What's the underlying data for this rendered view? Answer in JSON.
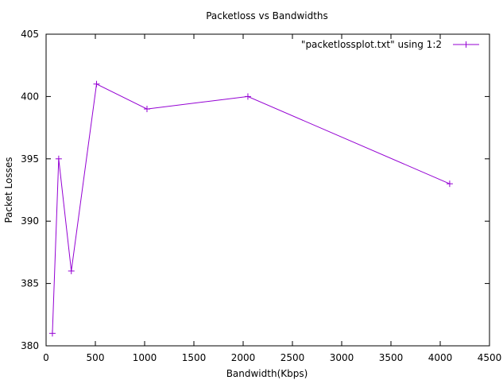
{
  "chart_data": {
    "type": "line",
    "title": "Packetloss vs Bandwidths",
    "xlabel": "Bandwidth(Kbps)",
    "ylabel": "Packet Losses",
    "xlim": [
      0,
      4500
    ],
    "ylim": [
      380,
      405
    ],
    "xticks": [
      0,
      500,
      1000,
      1500,
      2000,
      2500,
      3000,
      3500,
      4000,
      4500
    ],
    "yticks": [
      380,
      385,
      390,
      395,
      400,
      405
    ],
    "grid": false,
    "legend_position": "top-right",
    "series": [
      {
        "name": "\"packetlossplot.txt\" using 1:2",
        "color": "#9400d3",
        "marker": "plus",
        "x": [
          64,
          128,
          256,
          512,
          1024,
          2048,
          4096
        ],
        "y": [
          381,
          395,
          386,
          401,
          399,
          400,
          393
        ]
      }
    ]
  }
}
